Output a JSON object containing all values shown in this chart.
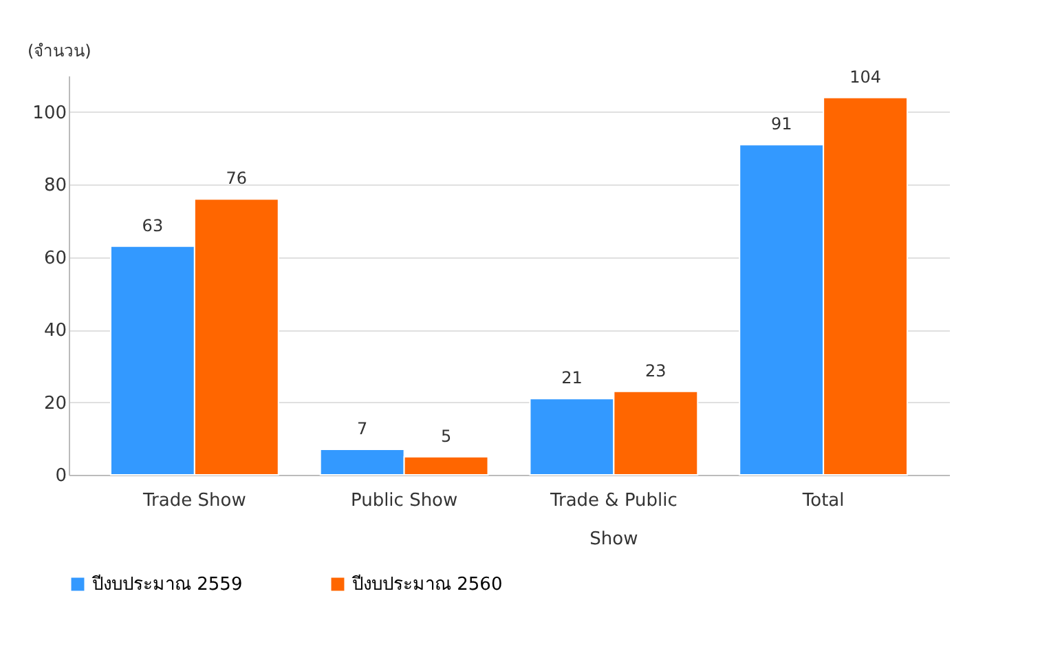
{
  "chart_data": {
    "type": "bar",
    "ylabel": "(จำนวน)",
    "categories": [
      "Trade Show",
      "Public Show",
      "Trade & Public Show",
      "Total"
    ],
    "series": [
      {
        "name": "ปีงบประมาณ 2559",
        "color": "#3399ff",
        "values": [
          63,
          7,
          21,
          91
        ]
      },
      {
        "name": "ปีงบประมาณ 2560",
        "color": "#ff6600",
        "values": [
          76,
          5,
          23,
          104
        ]
      }
    ],
    "ylim": [
      0,
      110
    ],
    "yticks": [
      0,
      20,
      40,
      60,
      80,
      100
    ],
    "grid": "y",
    "legend": "bottom",
    "data_labels": true
  }
}
